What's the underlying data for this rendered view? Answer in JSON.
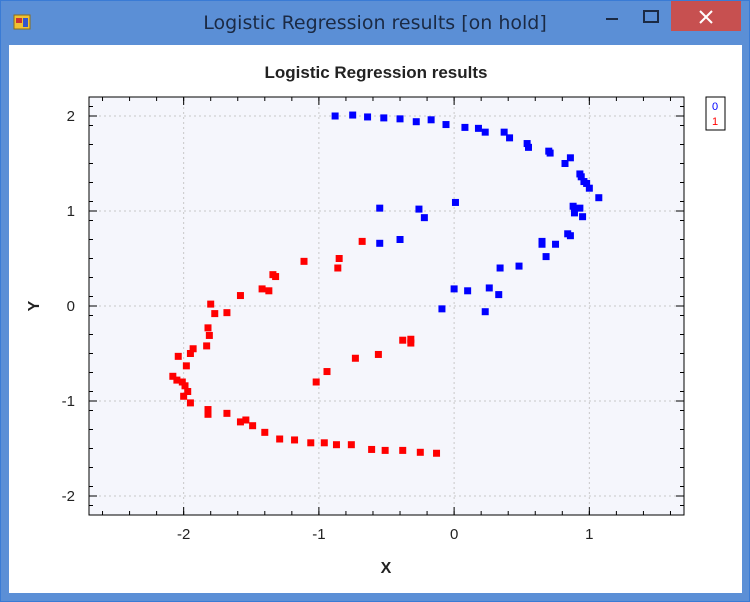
{
  "window": {
    "title": "Logistic Regression results [on hold]",
    "icon": "app-window-icon",
    "controls": {
      "minimize": "minimize-icon",
      "maximize": "maximize-icon",
      "close": "close-icon"
    }
  },
  "colors": {
    "class0": "#0000ff",
    "class1": "#ff0000",
    "plot_bg": "#f5f6fc",
    "titlebar": "#5b8fd6",
    "close_btn": "#c75050"
  },
  "chart_data": {
    "type": "scatter",
    "title": "Logistic Regression results",
    "xlabel": "X",
    "ylabel": "Y",
    "xlim": [
      -2.7,
      1.7
    ],
    "ylim": [
      -2.2,
      2.2
    ],
    "xticks": [
      -2,
      -1,
      0,
      1
    ],
    "xtick_labels": [
      "-2",
      "-1",
      "0",
      "1"
    ],
    "yticks": [
      -2,
      -1,
      0,
      1,
      2
    ],
    "ytick_labels": [
      "-2",
      "-1",
      "0",
      "1",
      "2"
    ],
    "grid": true,
    "legend_position": "outside-top-right",
    "series": [
      {
        "name": "0",
        "color": "#0000ff",
        "points": [
          [
            -0.88,
            2.0
          ],
          [
            -0.75,
            2.01
          ],
          [
            -0.64,
            1.99
          ],
          [
            -0.52,
            1.98
          ],
          [
            -0.4,
            1.97
          ],
          [
            -0.28,
            1.94
          ],
          [
            -0.17,
            1.96
          ],
          [
            -0.06,
            1.91
          ],
          [
            0.08,
            1.88
          ],
          [
            0.18,
            1.87
          ],
          [
            0.23,
            1.83
          ],
          [
            0.37,
            1.83
          ],
          [
            0.41,
            1.77
          ],
          [
            0.54,
            1.71
          ],
          [
            0.55,
            1.67
          ],
          [
            0.7,
            1.63
          ],
          [
            0.71,
            1.61
          ],
          [
            0.82,
            1.5
          ],
          [
            0.86,
            1.56
          ],
          [
            0.93,
            1.39
          ],
          [
            0.94,
            1.36
          ],
          [
            0.96,
            1.31
          ],
          [
            0.98,
            1.29
          ],
          [
            1.0,
            1.24
          ],
          [
            1.07,
            1.14
          ],
          [
            0.88,
            1.05
          ],
          [
            0.93,
            1.03
          ],
          [
            0.89,
            0.98
          ],
          [
            0.95,
            0.94
          ],
          [
            0.84,
            0.76
          ],
          [
            0.86,
            0.74
          ],
          [
            0.65,
            0.68
          ],
          [
            0.65,
            0.65
          ],
          [
            0.75,
            0.65
          ],
          [
            0.68,
            0.52
          ],
          [
            0.48,
            0.42
          ],
          [
            0.34,
            0.4
          ],
          [
            0.01,
            1.09
          ],
          [
            -0.26,
            1.02
          ],
          [
            -0.22,
            0.93
          ],
          [
            -0.55,
            1.03
          ],
          [
            -0.55,
            0.66
          ],
          [
            -0.4,
            0.7
          ],
          [
            0.0,
            0.18
          ],
          [
            0.1,
            0.16
          ],
          [
            0.26,
            0.19
          ],
          [
            0.33,
            0.12
          ],
          [
            -0.09,
            -0.03
          ],
          [
            0.23,
            -0.06
          ]
        ]
      },
      {
        "name": "1",
        "color": "#ff0000",
        "points": [
          [
            -0.68,
            0.68
          ],
          [
            -0.85,
            0.5
          ],
          [
            -0.86,
            0.4
          ],
          [
            -1.11,
            0.47
          ],
          [
            -1.34,
            0.33
          ],
          [
            -1.32,
            0.31
          ],
          [
            -1.42,
            0.18
          ],
          [
            -1.37,
            0.16
          ],
          [
            -1.58,
            0.11
          ],
          [
            -1.8,
            0.02
          ],
          [
            -1.77,
            -0.08
          ],
          [
            -1.68,
            -0.07
          ],
          [
            -1.82,
            -0.23
          ],
          [
            -1.81,
            -0.31
          ],
          [
            -1.83,
            -0.42
          ],
          [
            -1.93,
            -0.45
          ],
          [
            -1.95,
            -0.5
          ],
          [
            -2.04,
            -0.53
          ],
          [
            -1.98,
            -0.63
          ],
          [
            -2.08,
            -0.74
          ],
          [
            -2.05,
            -0.78
          ],
          [
            -2.01,
            -0.8
          ],
          [
            -1.99,
            -0.84
          ],
          [
            -1.97,
            -0.9
          ],
          [
            -2.0,
            -0.95
          ],
          [
            -1.95,
            -1.02
          ],
          [
            -1.82,
            -1.09
          ],
          [
            -1.82,
            -1.14
          ],
          [
            -1.68,
            -1.13
          ],
          [
            -1.58,
            -1.22
          ],
          [
            -1.54,
            -1.2
          ],
          [
            -1.49,
            -1.26
          ],
          [
            -1.4,
            -1.33
          ],
          [
            -1.29,
            -1.4
          ],
          [
            -1.18,
            -1.41
          ],
          [
            -1.06,
            -1.44
          ],
          [
            -0.96,
            -1.44
          ],
          [
            -0.87,
            -1.46
          ],
          [
            -0.76,
            -1.46
          ],
          [
            -0.61,
            -1.51
          ],
          [
            -0.51,
            -1.52
          ],
          [
            -0.38,
            -1.52
          ],
          [
            -0.25,
            -1.54
          ],
          [
            -0.13,
            -1.55
          ],
          [
            -0.73,
            -0.55
          ],
          [
            -0.56,
            -0.51
          ],
          [
            -0.38,
            -0.36
          ],
          [
            -0.32,
            -0.35
          ],
          [
            -0.32,
            -0.39
          ],
          [
            -0.94,
            -0.69
          ],
          [
            -1.02,
            -0.8
          ]
        ]
      }
    ]
  }
}
